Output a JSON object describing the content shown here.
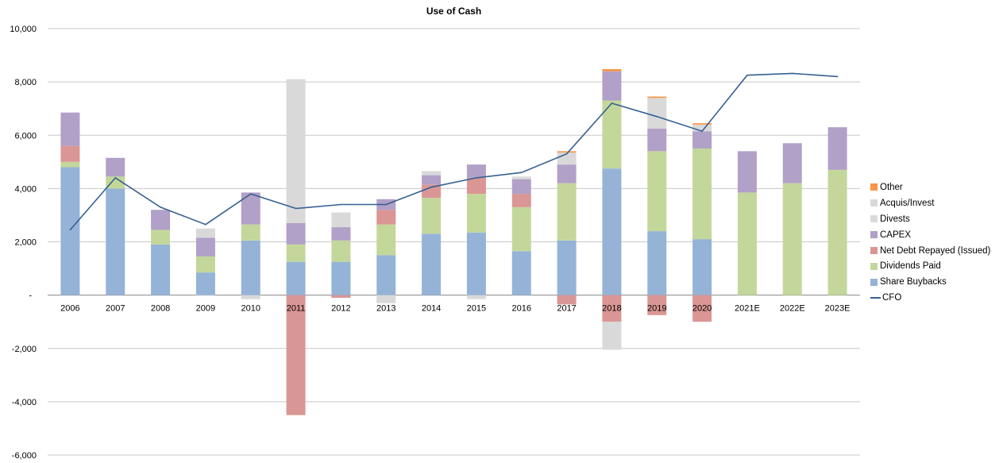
{
  "chart_data": {
    "type": "bar",
    "stacked": true,
    "title": "Use of Cash",
    "xlabel": "",
    "ylabel": "",
    "ylim": [
      -6000,
      10000
    ],
    "yticks": [
      10000,
      8000,
      6000,
      4000,
      2000,
      0,
      -2000,
      -4000,
      -6000
    ],
    "ytick_labels": [
      "10,000",
      "8,000",
      "6,000",
      "4,000",
      "2,000",
      "-",
      "-2,000",
      "-4,000",
      "-6,000"
    ],
    "grid": true,
    "legend_position": "right",
    "categories": [
      "2006",
      "2007",
      "2008",
      "2009",
      "2010",
      "2011",
      "2012",
      "2013",
      "2014",
      "2015",
      "2016",
      "2017",
      "2018",
      "2019",
      "2020",
      "2021E",
      "2022E",
      "2023E"
    ],
    "series": [
      {
        "name": "Share Buybacks",
        "color": "#95b3d7",
        "values": [
          4800,
          4000,
          1900,
          850,
          2050,
          1250,
          1250,
          1500,
          2300,
          2350,
          1650,
          2050,
          4750,
          2400,
          2100,
          0,
          0,
          0
        ]
      },
      {
        "name": "Dividends Paid",
        "color": "#c4d79b",
        "values": [
          200,
          450,
          550,
          600,
          600,
          650,
          800,
          1150,
          1350,
          1450,
          1650,
          2150,
          2550,
          3000,
          3400,
          3850,
          4200,
          4700
        ]
      },
      {
        "name": "Net Debt Repayed (Issued)",
        "color": "#da9694",
        "values": [
          600,
          0,
          0,
          0,
          0,
          -4500,
          -100,
          550,
          500,
          600,
          500,
          -350,
          -1000,
          -750,
          -1000,
          0,
          0,
          0
        ]
      },
      {
        "name": "CAPEX",
        "color": "#b1a0c7",
        "values": [
          1250,
          700,
          750,
          700,
          1200,
          800,
          500,
          400,
          350,
          500,
          550,
          700,
          1100,
          850,
          650,
          1550,
          1500,
          1600
        ]
      },
      {
        "name": "Divests",
        "color": "#d9d9d9",
        "values": [
          0,
          0,
          0,
          -20,
          -150,
          0,
          0,
          -300,
          0,
          -150,
          0,
          0,
          -1050,
          0,
          0,
          0,
          0,
          0
        ]
      },
      {
        "name": "Acquis/Invest",
        "color": "#d9d9d9",
        "values": [
          0,
          0,
          0,
          350,
          0,
          5400,
          550,
          0,
          150,
          0,
          100,
          450,
          0,
          1150,
          250,
          0,
          0,
          0
        ]
      },
      {
        "name": "Other",
        "color": "#f79646",
        "values": [
          0,
          0,
          0,
          0,
          0,
          0,
          0,
          0,
          0,
          0,
          0,
          50,
          80,
          50,
          50,
          0,
          0,
          0
        ]
      }
    ],
    "line_series": {
      "name": "CFO",
      "color": "#366092",
      "values": [
        2450,
        4400,
        3300,
        2650,
        3800,
        3250,
        3400,
        3400,
        4050,
        4400,
        4600,
        5300,
        7200,
        6700,
        6150,
        8250,
        8320,
        8200
      ]
    },
    "legend_order": [
      "Other",
      "Acquis/Invest",
      "Divests",
      "CAPEX",
      "Net Debt Repayed (Issued)",
      "Dividends Paid",
      "Share Buybacks",
      "CFO"
    ]
  }
}
